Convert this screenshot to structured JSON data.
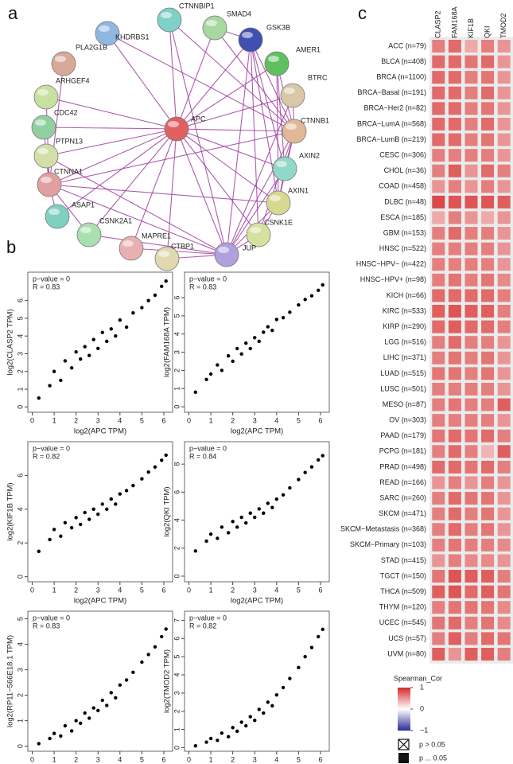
{
  "panel_labels": [
    "a",
    "b",
    "c"
  ],
  "network": {
    "nodes": [
      "APC",
      "KHDRBS1",
      "CTNNBIP1",
      "SMAD4",
      "GSK3B",
      "AMER1",
      "PLA2G1B",
      "BTRC",
      "ARHGEF4",
      "CTNNB1",
      "CDC42",
      "PTPN13",
      "AXIN2",
      "CTNNA1",
      "AXIN1",
      "ASAP1",
      "CSNK2A1",
      "CSNK1E",
      "MAPRE1",
      "CTBP1",
      "JUP"
    ]
  },
  "chart_data": [
    {
      "type": "scatter",
      "xlabel": "log2(APC TPM)",
      "ylabel": "log2(CLASP2 TPM)",
      "annotations": [
        "p−value = 0",
        "R = 0.83"
      ],
      "x": [
        0.3,
        0.8,
        1.0,
        1.3,
        1.5,
        1.8,
        2.0,
        2.2,
        2.4,
        2.6,
        2.8,
        3.0,
        3.2,
        3.4,
        3.6,
        3.8,
        4.0,
        4.3,
        4.6,
        5.0,
        5.3,
        5.6,
        5.9,
        6.1
      ],
      "y": [
        0.5,
        1.2,
        2.0,
        1.5,
        2.6,
        2.2,
        3.1,
        2.7,
        3.4,
        2.9,
        3.8,
        3.3,
        4.2,
        3.7,
        4.4,
        4.0,
        4.9,
        4.5,
        5.3,
        5.6,
        6.0,
        6.3,
        6.8,
        7.1
      ],
      "xlim": [
        -0.2,
        6.4
      ],
      "ylim": [
        -0.3,
        7.6
      ],
      "xticks": [
        0,
        1,
        2,
        3,
        4,
        5,
        6
      ],
      "yticks": [
        0,
        1,
        2,
        3,
        4,
        5,
        6
      ],
      "color": "#000000"
    },
    {
      "type": "scatter",
      "xlabel": "log2(APC TPM)",
      "ylabel": "log2(FAM168A TPM)",
      "annotations": [
        "p−value = 0",
        "R = 0.83"
      ],
      "x": [
        0.3,
        0.8,
        1.0,
        1.3,
        1.5,
        1.8,
        2.0,
        2.2,
        2.4,
        2.6,
        2.8,
        3.0,
        3.2,
        3.4,
        3.6,
        3.8,
        4.0,
        4.3,
        4.6,
        5.0,
        5.3,
        5.6,
        5.9,
        6.1
      ],
      "y": [
        0.8,
        1.5,
        1.8,
        2.3,
        2.0,
        2.8,
        2.5,
        3.2,
        2.9,
        3.5,
        3.2,
        3.8,
        3.6,
        4.1,
        4.4,
        4.2,
        4.8,
        4.9,
        5.2,
        5.6,
        5.9,
        6.1,
        6.4,
        6.7
      ],
      "xlim": [
        -0.2,
        6.4
      ],
      "ylim": [
        -0.3,
        7.4
      ],
      "xticks": [
        0,
        1,
        2,
        3,
        4,
        5,
        6
      ],
      "yticks": [
        0,
        1,
        2,
        3,
        4,
        5,
        6
      ],
      "color": "#000000"
    },
    {
      "type": "scatter",
      "xlabel": "log2(APC TPM)",
      "ylabel": "log2(KIF1B TPM)",
      "annotations": [
        "p−value = 0",
        "R = 0.82"
      ],
      "x": [
        0.3,
        0.8,
        1.0,
        1.3,
        1.5,
        1.8,
        2.0,
        2.2,
        2.4,
        2.6,
        2.8,
        3.0,
        3.2,
        3.4,
        3.6,
        3.8,
        4.0,
        4.3,
        4.6,
        5.0,
        5.3,
        5.6,
        5.9,
        6.1
      ],
      "y": [
        1.5,
        2.2,
        2.8,
        2.4,
        3.2,
        2.9,
        3.5,
        3.1,
        3.8,
        3.4,
        4.0,
        3.7,
        4.3,
        4.0,
        4.6,
        4.3,
        4.9,
        5.1,
        5.4,
        5.8,
        6.2,
        6.5,
        6.9,
        7.2
      ],
      "xlim": [
        -0.2,
        6.4
      ],
      "ylim": [
        -0.3,
        8.0
      ],
      "xticks": [
        0,
        1,
        2,
        3,
        4,
        5,
        6
      ],
      "yticks": [
        0,
        2,
        4,
        6
      ],
      "color": "#000000"
    },
    {
      "type": "scatter",
      "xlabel": "log2(APC TPM)",
      "ylabel": "log2(QKI TPM)",
      "annotations": [
        "p−value = 0",
        "R = 0.84"
      ],
      "x": [
        0.3,
        0.8,
        1.0,
        1.3,
        1.5,
        1.8,
        2.0,
        2.2,
        2.4,
        2.6,
        2.8,
        3.0,
        3.2,
        3.4,
        3.6,
        3.8,
        4.0,
        4.3,
        4.6,
        5.0,
        5.3,
        5.6,
        5.9,
        6.1
      ],
      "y": [
        1.8,
        2.5,
        3.0,
        2.7,
        3.5,
        3.1,
        3.9,
        3.5,
        4.2,
        3.8,
        4.5,
        4.2,
        4.8,
        4.5,
        5.2,
        4.9,
        5.5,
        5.8,
        6.3,
        6.9,
        7.4,
        7.8,
        8.3,
        8.6
      ],
      "xlim": [
        -0.2,
        6.4
      ],
      "ylim": [
        -0.4,
        9.6
      ],
      "xticks": [
        0,
        1,
        2,
        3,
        4,
        5,
        6
      ],
      "yticks": [
        0,
        2,
        4,
        6,
        8
      ],
      "color": "#000000"
    },
    {
      "type": "scatter",
      "xlabel": "log2(APC TPM)",
      "ylabel": "log2(RP11−566E18.1 TPM)",
      "annotations": [
        "p−value = 0",
        "R = 0.83"
      ],
      "x": [
        0.3,
        0.8,
        1.0,
        1.3,
        1.5,
        1.8,
        2.0,
        2.2,
        2.4,
        2.6,
        2.8,
        3.0,
        3.2,
        3.4,
        3.6,
        3.8,
        4.0,
        4.3,
        4.6,
        5.0,
        5.3,
        5.6,
        5.9,
        6.1
      ],
      "y": [
        0.1,
        0.3,
        0.5,
        0.4,
        0.8,
        0.6,
        1.0,
        0.9,
        1.3,
        1.1,
        1.5,
        1.4,
        1.8,
        1.6,
        2.1,
        1.9,
        2.4,
        2.6,
        2.9,
        3.3,
        3.6,
        3.9,
        4.3,
        4.6
      ],
      "xlim": [
        -0.2,
        6.4
      ],
      "ylim": [
        -0.2,
        5.3
      ],
      "xticks": [
        0,
        1,
        2,
        3,
        4,
        5,
        6
      ],
      "yticks": [
        0,
        1,
        2,
        3,
        4,
        5
      ],
      "color": "#000000"
    },
    {
      "type": "scatter",
      "xlabel": "log2(APC TPM)",
      "ylabel": "log2(TMOD2 TPM)",
      "annotations": [
        "p−value = 0",
        "R = 0.82"
      ],
      "x": [
        0.3,
        0.8,
        1.0,
        1.3,
        1.5,
        1.8,
        2.0,
        2.2,
        2.4,
        2.6,
        2.8,
        3.0,
        3.2,
        3.4,
        3.6,
        3.8,
        4.0,
        4.3,
        4.6,
        5.0,
        5.3,
        5.6,
        5.9,
        6.1
      ],
      "y": [
        0.1,
        0.3,
        0.5,
        0.4,
        0.8,
        0.6,
        1.1,
        0.9,
        1.4,
        1.2,
        1.7,
        1.5,
        2.1,
        1.9,
        2.5,
        2.3,
        2.9,
        3.3,
        3.8,
        4.4,
        5.0,
        5.5,
        6.1,
        6.5
      ],
      "xlim": [
        -0.2,
        6.4
      ],
      "ylim": [
        -0.2,
        7.5
      ],
      "xticks": [
        0,
        1,
        2,
        3,
        4,
        5,
        6
      ],
      "yticks": [
        0,
        1,
        2,
        3,
        4,
        5,
        6,
        7
      ],
      "color": "#000000"
    },
    {
      "type": "heatmap",
      "columns": [
        "CLASP2",
        "FAM168A",
        "KIF1B",
        "QKI",
        "TMOD2"
      ],
      "rows": [
        "ACC (n=79)",
        "BLCA (n=408)",
        "BRCA (n=1100)",
        "BRCA−Basal (n=191)",
        "BRCA−Her2 (n=82)",
        "BRCA−LumA (n=568)",
        "BRCA−LumB (n=219)",
        "CESC (n=306)",
        "CHOL (n=36)",
        "COAD (n=458)",
        "DLBC (n=48)",
        "ESCA (n=185)",
        "GBM (n=153)",
        "HNSC (n=522)",
        "HNSC−HPV− (n=422)",
        "HNSC−HPV+ (n=98)",
        "KICH (n=66)",
        "KIRC (n=533)",
        "KIRP (n=290)",
        "LGG (n=516)",
        "LIHC (n=371)",
        "LUAD (n=515)",
        "LUSC (n=501)",
        "MESO (n=87)",
        "OV (n=303)",
        "PAAD (n=179)",
        "PCPG (n=181)",
        "PRAD (n=498)",
        "READ (n=166)",
        "SARC (n=260)",
        "SKCM (n=471)",
        "SKCM−Metastasis (n=368)",
        "SKCM−Primary (n=103)",
        "STAD (n=415)",
        "TGCT (n=150)",
        "THCA (n=509)",
        "THYM (n=120)",
        "UCEC (n=545)",
        "UCS (n=57)",
        "UVM (n=80)"
      ],
      "values": [
        [
          0.6,
          0.7,
          0.4,
          0.6,
          0.5
        ],
        [
          0.7,
          0.7,
          0.65,
          0.7,
          0.5
        ],
        [
          0.7,
          0.7,
          0.6,
          0.65,
          0.5
        ],
        [
          0.7,
          0.7,
          0.6,
          0.7,
          0.5
        ],
        [
          0.7,
          0.7,
          0.6,
          0.65,
          0.5
        ],
        [
          0.7,
          0.7,
          0.6,
          0.7,
          0.5
        ],
        [
          0.7,
          0.7,
          0.6,
          0.65,
          0.5
        ],
        [
          0.6,
          0.6,
          0.6,
          0.6,
          0.5
        ],
        [
          0.6,
          0.75,
          0.5,
          0.7,
          0.6
        ],
        [
          0.5,
          0.6,
          0.5,
          0.6,
          0.5
        ],
        [
          0.85,
          0.8,
          0.8,
          0.8,
          0.75
        ],
        [
          0.4,
          0.6,
          0.5,
          0.4,
          0.5
        ],
        [
          0.6,
          0.7,
          0.6,
          0.6,
          0.5
        ],
        [
          0.6,
          0.6,
          0.6,
          0.6,
          0.5
        ],
        [
          0.6,
          0.6,
          0.6,
          0.6,
          0.5
        ],
        [
          0.6,
          0.65,
          0.6,
          0.65,
          0.55
        ],
        [
          0.7,
          0.7,
          0.7,
          0.7,
          0.6
        ],
        [
          0.75,
          0.8,
          0.75,
          0.75,
          0.6
        ],
        [
          0.7,
          0.75,
          0.7,
          0.7,
          0.6
        ],
        [
          0.6,
          0.7,
          0.6,
          0.6,
          0.5
        ],
        [
          0.6,
          0.65,
          0.6,
          0.65,
          0.5
        ],
        [
          0.65,
          0.65,
          0.6,
          0.65,
          0.5
        ],
        [
          0.6,
          0.6,
          0.6,
          0.6,
          0.5
        ],
        [
          0.6,
          0.65,
          0.6,
          0.6,
          0.75
        ],
        [
          0.6,
          0.6,
          0.6,
          0.6,
          0.5
        ],
        [
          0.65,
          0.7,
          0.65,
          0.7,
          0.6
        ],
        [
          0.6,
          0.7,
          0.6,
          0.35,
          0.75
        ],
        [
          0.7,
          0.7,
          0.65,
          0.7,
          0.6
        ],
        [
          0.5,
          0.6,
          0.5,
          0.6,
          0.5
        ],
        [
          0.6,
          0.7,
          0.65,
          0.65,
          0.5
        ],
        [
          0.6,
          0.7,
          0.6,
          0.65,
          0.5
        ],
        [
          0.6,
          0.7,
          0.6,
          0.65,
          0.5
        ],
        [
          0.6,
          0.65,
          0.6,
          0.6,
          0.55
        ],
        [
          0.5,
          0.6,
          0.55,
          0.55,
          0.5
        ],
        [
          0.65,
          0.8,
          0.75,
          0.75,
          0.6
        ],
        [
          0.75,
          0.8,
          0.7,
          0.75,
          0.65
        ],
        [
          0.6,
          0.65,
          0.65,
          0.65,
          0.55
        ],
        [
          0.65,
          0.7,
          0.6,
          0.65,
          0.55
        ],
        [
          0.6,
          0.75,
          0.6,
          0.7,
          0.65
        ],
        [
          0.75,
          0.5,
          0.75,
          0.75,
          0.6
        ]
      ],
      "zlim": [
        -1,
        1
      ],
      "colormap": [
        "#2b2b9a",
        "#ffffff",
        "#d42a2a"
      ],
      "legend_title": "Spearman_Cor",
      "colorbar_ticks": [
        1,
        0,
        {
          "value": -1,
          "label": "−1"
        }
      ],
      "significance_legend": [
        "p > 0.05",
        "p ... 0.05"
      ]
    }
  ]
}
